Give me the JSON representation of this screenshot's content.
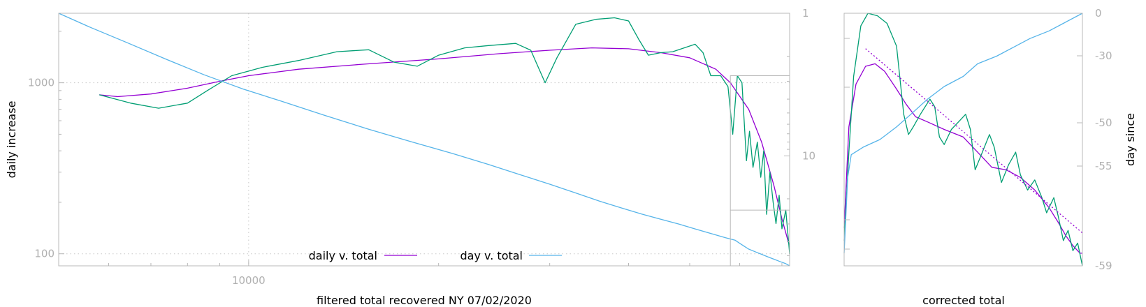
{
  "chart_data": [
    {
      "type": "line",
      "xlabel": "filtered total recovered NY 07/02/2020",
      "ylabel": "daily increase",
      "y2label": "",
      "xscale": "log",
      "yscale": "log",
      "y2scale": "log",
      "y2_reversed": true,
      "xlim": [
        5000,
        72000
      ],
      "ylim": [
        85,
        2550
      ],
      "y2lim": [
        1,
        59
      ],
      "x_ticks": [
        {
          "value": 10000,
          "label": "10000"
        }
      ],
      "y_ticks": [
        {
          "value": 100,
          "label": "100"
        },
        {
          "value": 1000,
          "label": "1000"
        }
      ],
      "y2_ticks": [
        {
          "value": 1,
          "label": "1"
        },
        {
          "value": 10,
          "label": "10"
        }
      ],
      "grid": true,
      "legend_position": "bottom-center",
      "series": [
        {
          "name": "daily v. total",
          "color": "#9400d3",
          "axis": "y",
          "points": [
            [
              5800,
              850
            ],
            [
              6200,
              830
            ],
            [
              7000,
              860
            ],
            [
              8000,
              930
            ],
            [
              9000,
              1020
            ],
            [
              10000,
              1100
            ],
            [
              12000,
              1200
            ],
            [
              15000,
              1280
            ],
            [
              20000,
              1380
            ],
            [
              25000,
              1480
            ],
            [
              30000,
              1550
            ],
            [
              35000,
              1600
            ],
            [
              40000,
              1580
            ],
            [
              45000,
              1500
            ],
            [
              50000,
              1400
            ],
            [
              55000,
              1200
            ],
            [
              58000,
              1000
            ],
            [
              62000,
              700
            ],
            [
              65000,
              450
            ],
            [
              68000,
              250
            ],
            [
              70000,
              160
            ],
            [
              72000,
              110
            ]
          ]
        },
        {
          "name": "",
          "color": "#009e73",
          "axis": "y",
          "points": [
            [
              5800,
              850
            ],
            [
              6500,
              760
            ],
            [
              7200,
              710
            ],
            [
              8000,
              760
            ],
            [
              8600,
              900
            ],
            [
              9400,
              1100
            ],
            [
              10500,
              1230
            ],
            [
              12000,
              1350
            ],
            [
              13800,
              1520
            ],
            [
              15500,
              1560
            ],
            [
              17000,
              1320
            ],
            [
              18500,
              1250
            ],
            [
              20000,
              1450
            ],
            [
              22000,
              1600
            ],
            [
              24000,
              1650
            ],
            [
              26500,
              1700
            ],
            [
              28000,
              1550
            ],
            [
              29500,
              1000
            ],
            [
              30800,
              1400
            ],
            [
              33000,
              2200
            ],
            [
              35500,
              2350
            ],
            [
              38000,
              2400
            ],
            [
              40000,
              2300
            ],
            [
              41500,
              1800
            ],
            [
              43000,
              1450
            ],
            [
              45000,
              1500
            ],
            [
              47000,
              1520
            ],
            [
              49000,
              1600
            ],
            [
              51000,
              1680
            ],
            [
              52500,
              1500
            ],
            [
              54000,
              1100
            ],
            [
              56000,
              1100
            ],
            [
              57500,
              950
            ],
            [
              58500,
              500
            ],
            [
              59500,
              1100
            ],
            [
              60500,
              1000
            ],
            [
              61500,
              350
            ],
            [
              62200,
              520
            ],
            [
              63000,
              320
            ],
            [
              64000,
              450
            ],
            [
              64800,
              280
            ],
            [
              65500,
              400
            ],
            [
              66200,
              170
            ],
            [
              67000,
              300
            ],
            [
              67800,
              200
            ],
            [
              68500,
              150
            ],
            [
              69300,
              220
            ],
            [
              70000,
              140
            ],
            [
              71000,
              180
            ],
            [
              72000,
              100
            ]
          ]
        },
        {
          "name": "day v. total",
          "color": "#56b4e9",
          "axis": "y2",
          "points": [
            [
              5000,
              1
            ],
            [
              5600,
              1.25
            ],
            [
              6400,
              1.6
            ],
            [
              7400,
              2.1
            ],
            [
              8500,
              2.7
            ],
            [
              9800,
              3.4
            ],
            [
              11200,
              4.1
            ],
            [
              13200,
              5.2
            ],
            [
              15500,
              6.5
            ],
            [
              18000,
              7.9
            ],
            [
              21000,
              9.6
            ],
            [
              24000,
              11.5
            ],
            [
              27000,
              13.6
            ],
            [
              30000,
              15.8
            ],
            [
              33000,
              18.2
            ],
            [
              36000,
              20.8
            ],
            [
              39000,
              23.2
            ],
            [
              42000,
              25.6
            ],
            [
              45000,
              27.8
            ],
            [
              48000,
              30
            ],
            [
              51000,
              32.5
            ],
            [
              54000,
              35
            ],
            [
              57000,
              37.5
            ],
            [
              59000,
              39
            ],
            [
              60000,
              41
            ],
            [
              61000,
              43
            ],
            [
              62000,
              45
            ],
            [
              63500,
              47
            ],
            [
              65000,
              49
            ],
            [
              66500,
              51
            ],
            [
              68000,
              53
            ],
            [
              69500,
              55
            ],
            [
              71000,
              57
            ],
            [
              72000,
              59
            ]
          ]
        }
      ]
    },
    {
      "type": "line",
      "xlabel": "corrected total",
      "ylabel": "",
      "y2label": "day since",
      "xlim": [
        0,
        1
      ],
      "ylim": [
        0,
        1
      ],
      "y2lim": [
        0,
        -59
      ],
      "y2_ticks": [
        {
          "value": 0,
          "label": "0"
        },
        {
          "value": -30,
          "label": "-30"
        },
        {
          "value": -50,
          "label": "-50"
        },
        {
          "value": -55,
          "label": "-55"
        },
        {
          "value": -59,
          "label": "-59"
        }
      ],
      "series": [
        {
          "name": "",
          "color": "#9400d3",
          "axis": "y",
          "points": [
            [
              0,
              0.15
            ],
            [
              0.02,
              0.55
            ],
            [
              0.05,
              0.72
            ],
            [
              0.09,
              0.79
            ],
            [
              0.13,
              0.8
            ],
            [
              0.17,
              0.77
            ],
            [
              0.22,
              0.7
            ],
            [
              0.26,
              0.64
            ],
            [
              0.3,
              0.59
            ],
            [
              0.35,
              0.57
            ],
            [
              0.42,
              0.54
            ],
            [
              0.5,
              0.51
            ],
            [
              0.56,
              0.45
            ],
            [
              0.62,
              0.39
            ],
            [
              0.68,
              0.38
            ],
            [
              0.74,
              0.35
            ],
            [
              0.8,
              0.3
            ],
            [
              0.86,
              0.23
            ],
            [
              0.9,
              0.17
            ],
            [
              0.93,
              0.12
            ],
            [
              0.96,
              0.08
            ],
            [
              0.99,
              0.05
            ],
            [
              1.0,
              0.05
            ]
          ]
        },
        {
          "name": "",
          "color": "#009e73",
          "axis": "y",
          "points": [
            [
              0,
              0.1
            ],
            [
              0.02,
              0.45
            ],
            [
              0.04,
              0.75
            ],
            [
              0.07,
              0.95
            ],
            [
              0.1,
              1.0
            ],
            [
              0.14,
              0.99
            ],
            [
              0.18,
              0.96
            ],
            [
              0.22,
              0.87
            ],
            [
              0.25,
              0.6
            ],
            [
              0.27,
              0.52
            ],
            [
              0.29,
              0.55
            ],
            [
              0.32,
              0.6
            ],
            [
              0.36,
              0.66
            ],
            [
              0.38,
              0.63
            ],
            [
              0.4,
              0.51
            ],
            [
              0.42,
              0.48
            ],
            [
              0.45,
              0.54
            ],
            [
              0.48,
              0.57
            ],
            [
              0.51,
              0.6
            ],
            [
              0.53,
              0.54
            ],
            [
              0.55,
              0.38
            ],
            [
              0.58,
              0.45
            ],
            [
              0.61,
              0.52
            ],
            [
              0.63,
              0.47
            ],
            [
              0.66,
              0.33
            ],
            [
              0.69,
              0.4
            ],
            [
              0.72,
              0.45
            ],
            [
              0.74,
              0.36
            ],
            [
              0.77,
              0.3
            ],
            [
              0.8,
              0.34
            ],
            [
              0.83,
              0.27
            ],
            [
              0.85,
              0.21
            ],
            [
              0.88,
              0.27
            ],
            [
              0.9,
              0.19
            ],
            [
              0.92,
              0.1
            ],
            [
              0.94,
              0.14
            ],
            [
              0.96,
              0.06
            ],
            [
              0.98,
              0.09
            ],
            [
              1.0,
              0.0
            ]
          ]
        },
        {
          "name": "",
          "color": "#56b4e9",
          "axis": "y",
          "points": [
            [
              0,
              0.05
            ],
            [
              0.015,
              0.35
            ],
            [
              0.03,
              0.44
            ],
            [
              0.08,
              0.47
            ],
            [
              0.15,
              0.5
            ],
            [
              0.22,
              0.55
            ],
            [
              0.28,
              0.6
            ],
            [
              0.35,
              0.66
            ],
            [
              0.42,
              0.71
            ],
            [
              0.5,
              0.75
            ],
            [
              0.56,
              0.8
            ],
            [
              0.64,
              0.83
            ],
            [
              0.72,
              0.87
            ],
            [
              0.78,
              0.9
            ],
            [
              0.86,
              0.93
            ],
            [
              0.92,
              0.96
            ],
            [
              1.0,
              1.0
            ]
          ]
        },
        {
          "name": "",
          "color": "#9400d3",
          "dashed": true,
          "axis": "y",
          "points": [
            [
              0.09,
              0.86
            ],
            [
              1.0,
              0.13
            ]
          ]
        }
      ]
    }
  ]
}
